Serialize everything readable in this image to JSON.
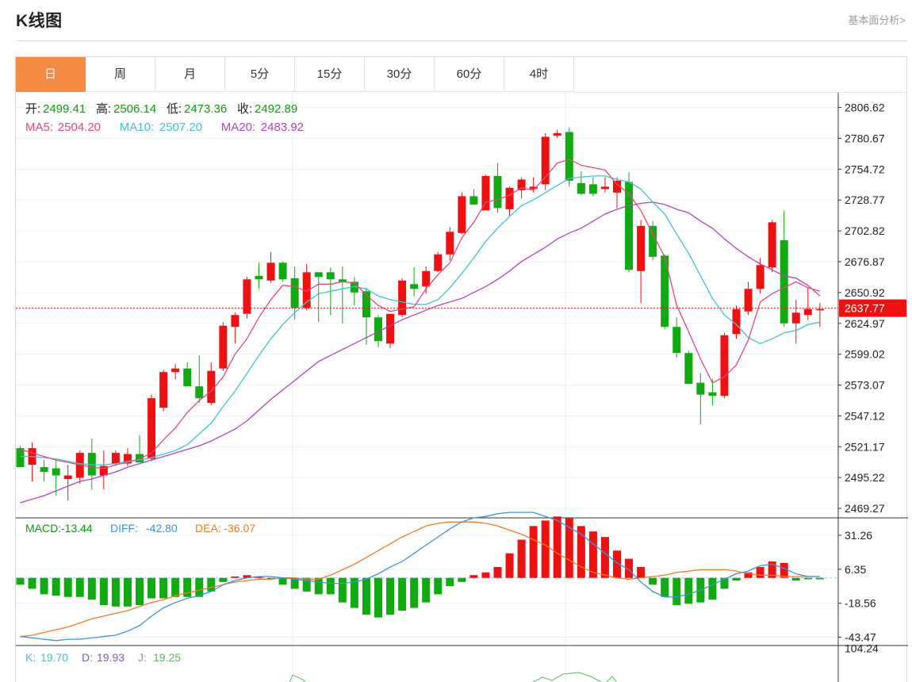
{
  "header": {
    "title": "K线图",
    "link": "基本面分析>"
  },
  "tabs": [
    "日",
    "周",
    "月",
    "5分",
    "15分",
    "30分",
    "60分",
    "4时"
  ],
  "active_tab": 0,
  "colors": {
    "up": "#ee1111",
    "down": "#11aa11",
    "ma5": "#e8457a",
    "ma10": "#3cc4d6",
    "ma20": "#b044c0",
    "diff": "#3b93e0",
    "dea": "#f47a20",
    "kline": "#3cc4d6",
    "dline": "#8a55c8",
    "jline": "#5cb85c",
    "accent": "#f48a43"
  },
  "info": {
    "ohlc": [
      {
        "label": "开:",
        "value": "2499.41"
      },
      {
        "label": "高:",
        "value": "2506.14"
      },
      {
        "label": "低:",
        "value": "2473.36"
      },
      {
        "label": "收:",
        "value": "2492.89"
      }
    ],
    "ma": [
      {
        "label": "MA5:",
        "value": "2504.20"
      },
      {
        "label": "MA10:",
        "value": "2507.20"
      },
      {
        "label": "MA20:",
        "value": "2483.92"
      }
    ],
    "macd": [
      {
        "label": "MACD:",
        "value": "-13.44"
      },
      {
        "label": "DIFF:",
        "value": "-42.80"
      },
      {
        "label": "DEA:",
        "value": "-36.07"
      }
    ],
    "kdj": [
      {
        "label": "K:",
        "value": "19.70"
      },
      {
        "label": "D:",
        "value": "19.93"
      },
      {
        "label": "J:",
        "value": "19.25"
      }
    ]
  },
  "chart_data": [
    {
      "type": "candlestick",
      "y_ticks": [
        "2806.62",
        "2780.67",
        "2754.72",
        "2728.77",
        "2702.82",
        "2676.87",
        "2650.92",
        "2624.97",
        "2599.02",
        "2573.07",
        "2547.12",
        "2521.17",
        "2495.22",
        "2469.27"
      ],
      "ylim": [
        2462,
        2819
      ],
      "last_price": "2637.77",
      "candles": [
        {
          "o": 2520,
          "h": 2522,
          "l": 2505,
          "c": 2504
        },
        {
          "o": 2506,
          "h": 2525,
          "l": 2492,
          "c": 2520
        },
        {
          "o": 2504,
          "h": 2510,
          "l": 2492,
          "c": 2500
        },
        {
          "o": 2503,
          "h": 2510,
          "l": 2480,
          "c": 2497
        },
        {
          "o": 2494,
          "h": 2506,
          "l": 2476,
          "c": 2497
        },
        {
          "o": 2495,
          "h": 2518,
          "l": 2490,
          "c": 2516
        },
        {
          "o": 2516,
          "h": 2528,
          "l": 2485,
          "c": 2497
        },
        {
          "o": 2497,
          "h": 2518,
          "l": 2485,
          "c": 2505
        },
        {
          "o": 2507,
          "h": 2518,
          "l": 2505,
          "c": 2516
        },
        {
          "o": 2507,
          "h": 2520,
          "l": 2505,
          "c": 2515
        },
        {
          "o": 2515,
          "h": 2531,
          "l": 2508,
          "c": 2508
        },
        {
          "o": 2511,
          "h": 2565,
          "l": 2509,
          "c": 2562
        },
        {
          "o": 2554,
          "h": 2586,
          "l": 2551,
          "c": 2584
        },
        {
          "o": 2584,
          "h": 2591,
          "l": 2578,
          "c": 2587
        },
        {
          "o": 2587,
          "h": 2592,
          "l": 2572,
          "c": 2572
        },
        {
          "o": 2572,
          "h": 2598,
          "l": 2558,
          "c": 2562
        },
        {
          "o": 2558,
          "h": 2592,
          "l": 2556,
          "c": 2585
        },
        {
          "o": 2587,
          "h": 2626,
          "l": 2585,
          "c": 2623
        },
        {
          "o": 2622,
          "h": 2634,
          "l": 2608,
          "c": 2632
        },
        {
          "o": 2633,
          "h": 2664,
          "l": 2629,
          "c": 2662
        },
        {
          "o": 2665,
          "h": 2676,
          "l": 2654,
          "c": 2662
        },
        {
          "o": 2661,
          "h": 2685,
          "l": 2659,
          "c": 2676
        },
        {
          "o": 2676,
          "h": 2677,
          "l": 2660,
          "c": 2662
        },
        {
          "o": 2663,
          "h": 2673,
          "l": 2628,
          "c": 2638
        },
        {
          "o": 2638,
          "h": 2675,
          "l": 2636,
          "c": 2668
        },
        {
          "o": 2668,
          "h": 2668,
          "l": 2626,
          "c": 2664
        },
        {
          "o": 2668,
          "h": 2672,
          "l": 2632,
          "c": 2662
        },
        {
          "o": 2662,
          "h": 2673,
          "l": 2625,
          "c": 2660
        },
        {
          "o": 2660,
          "h": 2664,
          "l": 2640,
          "c": 2651
        },
        {
          "o": 2652,
          "h": 2655,
          "l": 2607,
          "c": 2630
        },
        {
          "o": 2630,
          "h": 2632,
          "l": 2605,
          "c": 2610
        },
        {
          "o": 2608,
          "h": 2632,
          "l": 2604,
          "c": 2633
        },
        {
          "o": 2632,
          "h": 2663,
          "l": 2630,
          "c": 2661
        },
        {
          "o": 2658,
          "h": 2672,
          "l": 2648,
          "c": 2654
        },
        {
          "o": 2656,
          "h": 2673,
          "l": 2650,
          "c": 2669
        },
        {
          "o": 2669,
          "h": 2685,
          "l": 2668,
          "c": 2683
        },
        {
          "o": 2683,
          "h": 2706,
          "l": 2678,
          "c": 2702
        },
        {
          "o": 2701,
          "h": 2735,
          "l": 2700,
          "c": 2732
        },
        {
          "o": 2732,
          "h": 2738,
          "l": 2725,
          "c": 2725
        },
        {
          "o": 2720,
          "h": 2750,
          "l": 2720,
          "c": 2749
        },
        {
          "o": 2749,
          "h": 2760,
          "l": 2718,
          "c": 2722
        },
        {
          "o": 2721,
          "h": 2740,
          "l": 2716,
          "c": 2739
        },
        {
          "o": 2737,
          "h": 2748,
          "l": 2730,
          "c": 2746
        },
        {
          "o": 2738,
          "h": 2748,
          "l": 2735,
          "c": 2740
        },
        {
          "o": 2742,
          "h": 2785,
          "l": 2737,
          "c": 2782
        },
        {
          "o": 2783,
          "h": 2788,
          "l": 2781,
          "c": 2785
        },
        {
          "o": 2786,
          "h": 2790,
          "l": 2740,
          "c": 2745
        },
        {
          "o": 2743,
          "h": 2753,
          "l": 2733,
          "c": 2734
        },
        {
          "o": 2742,
          "h": 2748,
          "l": 2732,
          "c": 2734
        },
        {
          "o": 2738,
          "h": 2748,
          "l": 2735,
          "c": 2740
        },
        {
          "o": 2735,
          "h": 2748,
          "l": 2722,
          "c": 2745
        },
        {
          "o": 2744,
          "h": 2752,
          "l": 2668,
          "c": 2670
        },
        {
          "o": 2669,
          "h": 2712,
          "l": 2642,
          "c": 2707
        },
        {
          "o": 2707,
          "h": 2711,
          "l": 2678,
          "c": 2681
        },
        {
          "o": 2682,
          "h": 2683,
          "l": 2620,
          "c": 2622
        },
        {
          "o": 2622,
          "h": 2630,
          "l": 2596,
          "c": 2600
        },
        {
          "o": 2600,
          "h": 2602,
          "l": 2575,
          "c": 2574
        },
        {
          "o": 2575,
          "h": 2583,
          "l": 2540,
          "c": 2565
        },
        {
          "o": 2567,
          "h": 2578,
          "l": 2556,
          "c": 2564
        },
        {
          "o": 2564,
          "h": 2617,
          "l": 2562,
          "c": 2615
        },
        {
          "o": 2616,
          "h": 2640,
          "l": 2612,
          "c": 2637
        },
        {
          "o": 2635,
          "h": 2660,
          "l": 2632,
          "c": 2654
        },
        {
          "o": 2654,
          "h": 2680,
          "l": 2650,
          "c": 2674
        },
        {
          "o": 2672,
          "h": 2712,
          "l": 2668,
          "c": 2710
        },
        {
          "o": 2695,
          "h": 2720,
          "l": 2622,
          "c": 2625
        },
        {
          "o": 2625,
          "h": 2645,
          "l": 2608,
          "c": 2634
        },
        {
          "o": 2632,
          "h": 2655,
          "l": 2628,
          "c": 2637
        },
        {
          "o": 2636,
          "h": 2642,
          "l": 2622,
          "c": 2637
        }
      ],
      "ma5": [
        2519,
        2516,
        2513,
        2510,
        2508,
        2506,
        2504,
        2503,
        2506,
        2508,
        2511,
        2516,
        2527,
        2537,
        2550,
        2560,
        2568,
        2580,
        2599,
        2612,
        2630,
        2645,
        2657,
        2656,
        2652,
        2658,
        2658,
        2660,
        2659,
        2649,
        2640,
        2635,
        2637,
        2639,
        2654,
        2666,
        2676,
        2697,
        2710,
        2727,
        2729,
        2733,
        2739,
        2737,
        2748,
        2760,
        2763,
        2758,
        2756,
        2754,
        2742,
        2734,
        2720,
        2700,
        2681,
        2640,
        2618,
        2595,
        2575,
        2580,
        2590,
        2611,
        2643,
        2650,
        2655,
        2660,
        2655,
        2652
      ],
      "ma10": [
        2513,
        2513,
        2512,
        2511,
        2509,
        2507,
        2506,
        2506,
        2507,
        2509,
        2510,
        2512,
        2515,
        2518,
        2523,
        2532,
        2541,
        2555,
        2568,
        2583,
        2598,
        2612,
        2624,
        2634,
        2643,
        2650,
        2652,
        2654,
        2656,
        2654,
        2648,
        2645,
        2643,
        2641,
        2641,
        2645,
        2655,
        2667,
        2680,
        2694,
        2705,
        2715,
        2724,
        2729,
        2735,
        2741,
        2747,
        2748,
        2749,
        2749,
        2746,
        2744,
        2738,
        2727,
        2717,
        2700,
        2684,
        2665,
        2646,
        2632,
        2624,
        2613,
        2608,
        2612,
        2617,
        2619,
        2624,
        2626
      ],
      "ma20": [
        2474,
        2477,
        2480,
        2484,
        2488,
        2492,
        2494,
        2497,
        2500,
        2504,
        2507,
        2510,
        2513,
        2516,
        2519,
        2522,
        2526,
        2531,
        2536,
        2543,
        2552,
        2561,
        2569,
        2577,
        2585,
        2593,
        2598,
        2603,
        2608,
        2613,
        2618,
        2623,
        2628,
        2632,
        2636,
        2640,
        2643,
        2646,
        2651,
        2656,
        2662,
        2669,
        2677,
        2683,
        2689,
        2696,
        2701,
        2705,
        2711,
        2717,
        2721,
        2724,
        2726,
        2727,
        2725,
        2721,
        2718,
        2711,
        2705,
        2696,
        2688,
        2681,
        2675,
        2670,
        2665,
        2663,
        2657,
        2648
      ]
    },
    {
      "type": "bar",
      "name": "MACD",
      "y_ticks": [
        "31.26",
        "6.35",
        "-18.56",
        "-43.47"
      ],
      "ylim": [
        -49,
        44
      ],
      "hist": [
        -5,
        -8,
        -12,
        -13,
        -14,
        -14,
        -16,
        -20,
        -21,
        -21,
        -20,
        -15,
        -15,
        -14,
        -14,
        -14,
        -10,
        -3,
        1,
        2,
        1,
        -1,
        -5,
        -8,
        -10,
        -12,
        -12,
        -18,
        -22,
        -27,
        -29,
        -27,
        -24,
        -22,
        -18,
        -12,
        -6,
        -3,
        2,
        4,
        8,
        18,
        28,
        38,
        42,
        45,
        44,
        38,
        34,
        30,
        20,
        14,
        8,
        -5,
        -14,
        -20,
        -19,
        -18,
        -16,
        -8,
        -2,
        4,
        8,
        12,
        11,
        -2,
        -1,
        -1
      ],
      "diff": [
        -43,
        -44,
        -45,
        -46,
        -45,
        -45,
        -44,
        -43,
        -42,
        -39,
        -35,
        -28,
        -22,
        -18,
        -15,
        -13,
        -10,
        -5,
        -2,
        0,
        1,
        1,
        0,
        -1,
        -2,
        -3,
        -4,
        -4,
        -3,
        -1,
        3,
        8,
        12,
        18,
        24,
        30,
        36,
        41,
        44,
        45,
        47,
        48,
        48,
        48,
        45,
        42,
        37,
        32,
        25,
        18,
        11,
        6,
        -3,
        -10,
        -14,
        -14,
        -12,
        -9,
        -5,
        -1,
        3,
        5,
        9,
        10,
        7,
        3,
        1,
        1
      ],
      "dea": [
        -43,
        -42,
        -40,
        -38,
        -36,
        -33,
        -30,
        -28,
        -26,
        -24,
        -21,
        -18,
        -16,
        -13,
        -11,
        -9,
        -7,
        -5,
        -3,
        -2,
        -1,
        -1,
        0,
        0,
        -1,
        -1,
        2,
        6,
        10,
        15,
        20,
        25,
        30,
        34,
        38,
        40,
        41,
        41,
        41,
        40,
        38,
        35,
        32,
        28,
        24,
        18,
        13,
        8,
        4,
        2,
        0,
        -1,
        0,
        1,
        2,
        4,
        5,
        6,
        6,
        6,
        5,
        3,
        2,
        2,
        1,
        1,
        1,
        1
      ]
    },
    {
      "type": "line",
      "name": "KDJ",
      "y_ticks": [
        "104.24"
      ],
      "ylim": [
        0,
        112
      ]
    }
  ]
}
